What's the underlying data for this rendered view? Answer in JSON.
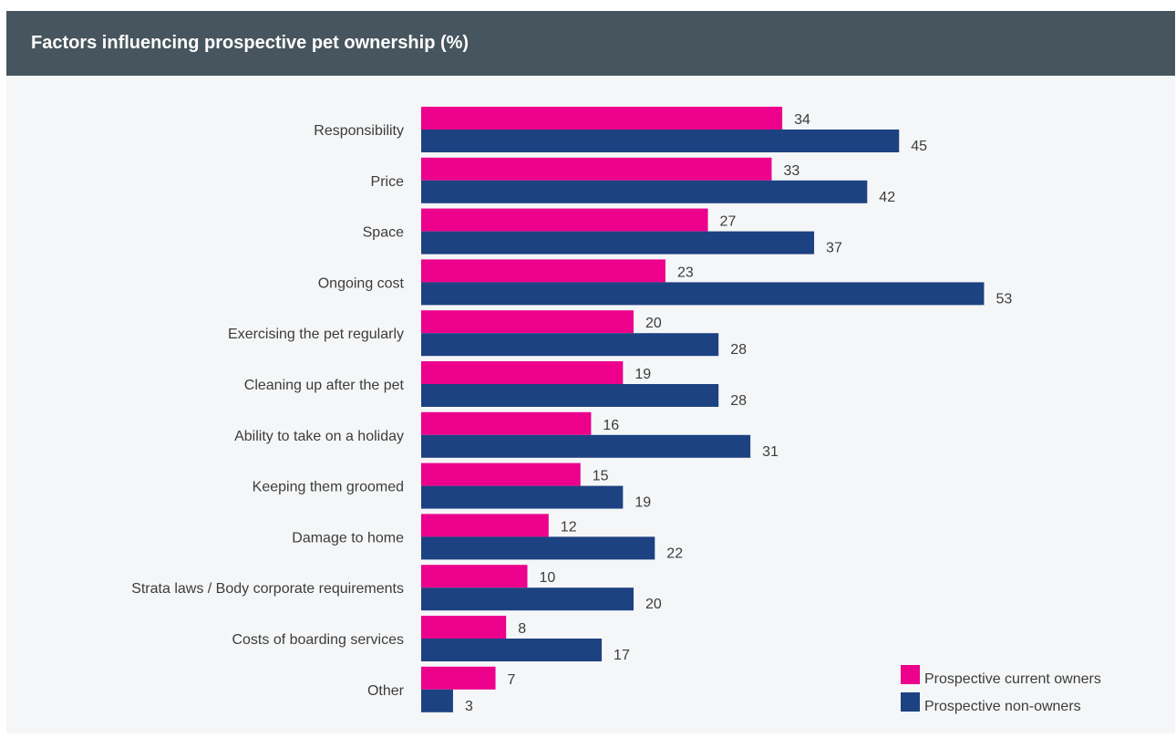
{
  "header": {
    "title": "Factors influencing prospective pet ownership (%)"
  },
  "colors": {
    "header_bg": "#46555e",
    "card_bg": "#f5f6f7",
    "series_1": "#ec008c",
    "series_2": "#1d4282",
    "text": "#3c3c3c"
  },
  "chart_data": {
    "type": "bar",
    "orientation": "horizontal",
    "title": "Factors influencing prospective pet ownership (%)",
    "categories": [
      "Responsibility",
      "Price",
      "Space",
      "Ongoing cost",
      "Exercising the pet regularly",
      "Cleaning up after the pet",
      "Ability to take on a holiday",
      "Keeping them groomed",
      "Damage to home",
      "Strata laws / Body corporate requirements",
      "Costs of boarding services",
      "Other"
    ],
    "series": [
      {
        "name": "Prospective current owners",
        "color": "#ec008c",
        "values": [
          34,
          33,
          27,
          23,
          20,
          19,
          16,
          15,
          12,
          10,
          8,
          7
        ]
      },
      {
        "name": "Prospective non-owners",
        "color": "#1d4282",
        "values": [
          45,
          42,
          37,
          53,
          28,
          28,
          31,
          19,
          22,
          20,
          17,
          3
        ]
      }
    ],
    "data_labels": true,
    "grid": false,
    "legend_position": "bottom-right",
    "xlim": [
      0,
      53
    ]
  }
}
